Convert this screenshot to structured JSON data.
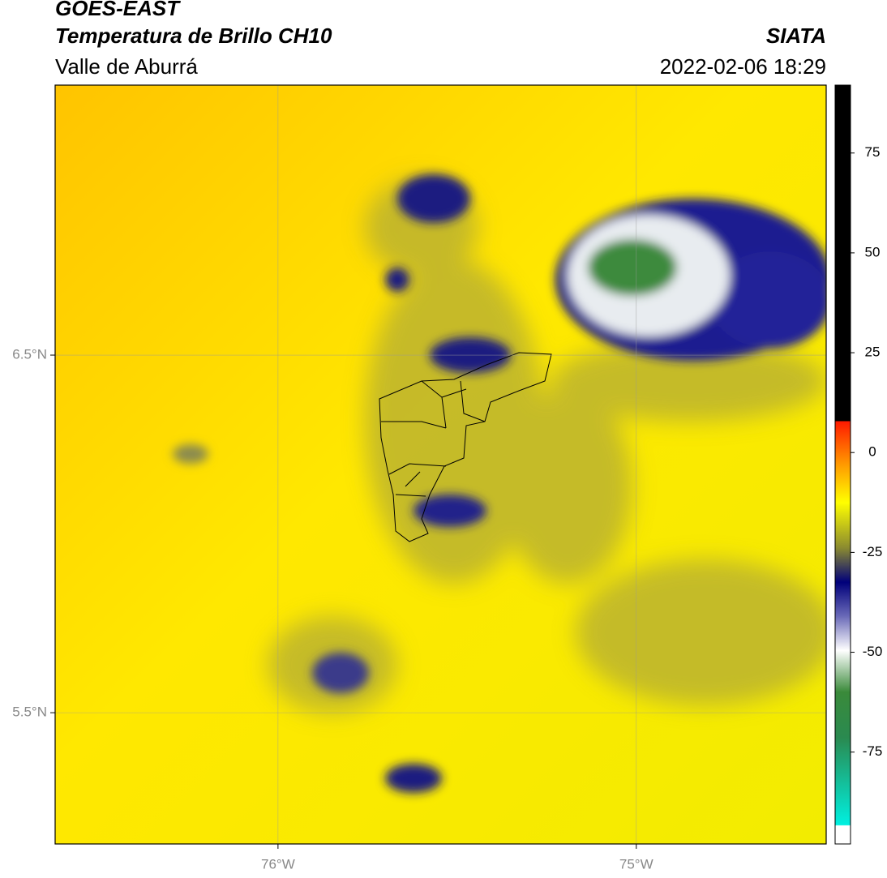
{
  "header": {
    "satellite": "GOES-EAST",
    "product": "Temperatura de Brillo CH10",
    "region": "Valle de Aburrá",
    "agency": "SIATA",
    "datetime": "2022-02-06 18:29"
  },
  "map": {
    "xlim": [
      -76.622,
      -74.47
    ],
    "ylim": [
      5.133,
      7.255
    ],
    "xticks": [
      {
        "value": -76,
        "label": "76°W"
      },
      {
        "value": -75,
        "label": "75°W"
      }
    ],
    "yticks": [
      {
        "value": 6.5,
        "label": "6.5°N"
      },
      {
        "value": 5.5,
        "label": "5.5°N"
      }
    ]
  },
  "colorbar": {
    "range": [
      -98,
      92
    ],
    "ticks": [
      75,
      50,
      25,
      0,
      -25,
      -50,
      -75
    ]
  }
}
